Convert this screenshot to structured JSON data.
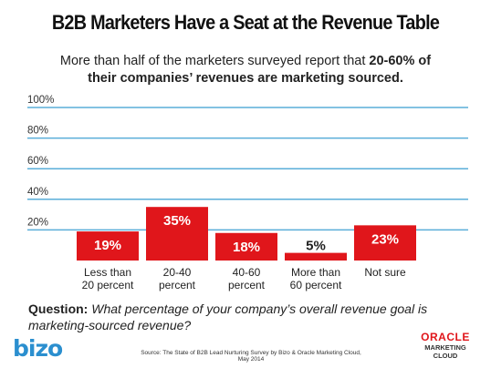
{
  "header": {
    "title": "B2B Marketers Have a Seat at the Revenue Table",
    "subtitle_line1_plain": "More than half of the marketers surveyed report that ",
    "subtitle_line1_bold": "20-60% of",
    "subtitle_line2_bold": "their companies’ revenues are marketing sourced."
  },
  "question": {
    "label": "Question:",
    "text": " What percentage of your company’s overall revenue goal is marketing-sourced revenue?"
  },
  "footer": {
    "bizo_logo": "bizo",
    "source": "Source: The State of B2B Lead Nurturing Survey by Bizo & Oracle Marketing Cloud, May 2014",
    "oracle_line1": "ORACLE",
    "oracle_line2": "MARKETING",
    "oracle_line3": "CLOUD"
  },
  "colors": {
    "bar": "#e0161b",
    "gridline": "#5aaed9",
    "bar_label": "#ffffff",
    "dark_label": "#222222"
  },
  "chart_data": {
    "type": "bar",
    "categories": [
      [
        "Less than",
        "20 percent"
      ],
      [
        "20-40",
        "percent"
      ],
      [
        "40-60",
        "percent"
      ],
      [
        "More than",
        "60 percent"
      ],
      [
        "Not sure"
      ]
    ],
    "values": [
      19,
      35,
      18,
      5,
      23
    ],
    "value_labels": [
      "19%",
      "35%",
      "18%",
      "5%",
      "23%"
    ],
    "label_inside": [
      true,
      true,
      true,
      false,
      true
    ],
    "ylim": [
      0,
      100
    ],
    "yticks": [
      20,
      40,
      60,
      80,
      100
    ],
    "ytick_labels": [
      "20%",
      "40%",
      "60%",
      "80%",
      "100%"
    ],
    "grid": true
  }
}
